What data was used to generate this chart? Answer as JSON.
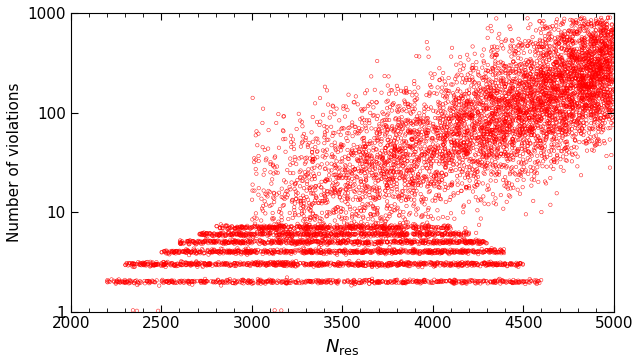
{
  "title": "",
  "xlabel": "$N_{\\mathrm{res}}$",
  "ylabel": "Number of violations",
  "xlim": [
    2000,
    5000
  ],
  "ylim": [
    1,
    1000
  ],
  "x_ticks": [
    2000,
    2500,
    3000,
    3500,
    4000,
    4500,
    5000
  ],
  "y_ticks": [
    1,
    10,
    100,
    1000
  ],
  "marker_color": "red",
  "marker": "o",
  "marker_size": 2.5,
  "marker_lw": 0.4,
  "background_color": "white",
  "seed": 12345
}
